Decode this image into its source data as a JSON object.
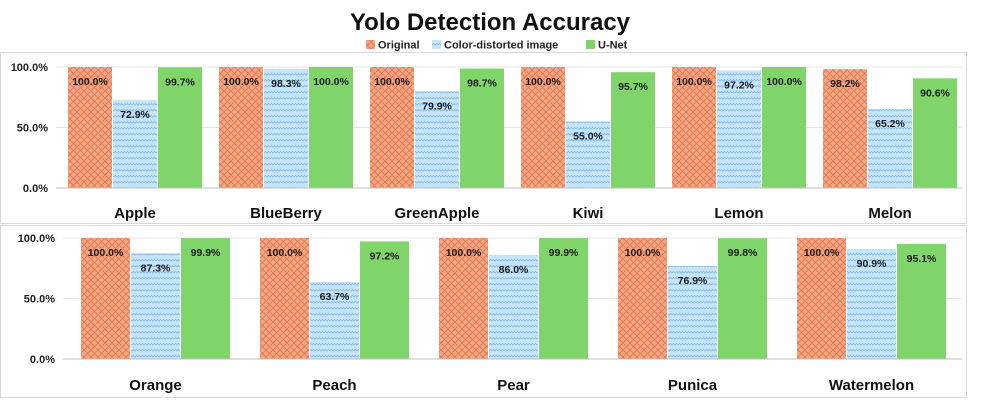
{
  "chart_data": {
    "type": "bar",
    "title": "Yolo Detection Accuracy",
    "legend": [
      {
        "name": "Original",
        "color": "#F4A582"
      },
      {
        "name": "Color-distorted image",
        "color": "#BFE0F7"
      },
      {
        "name": "U-Net",
        "color": "#7FD46A"
      }
    ],
    "ylim": [
      0,
      100
    ],
    "yticks": [
      "0.0%",
      "50.0%",
      "100.0%"
    ],
    "panels": [
      {
        "categories": [
          "Apple",
          "BlueBerry",
          "GreenApple",
          "Kiwi",
          "Lemon",
          "Melon"
        ],
        "series": [
          {
            "name": "Original",
            "values": [
              100.0,
              100.0,
              100.0,
              100.0,
              100.0,
              98.2
            ],
            "labels": [
              "100.0%",
              "100.0%",
              "100.0%",
              "100.0%",
              "100.0%",
              "98.2%"
            ]
          },
          {
            "name": "Color-distorted image",
            "values": [
              72.9,
              98.3,
              79.9,
              55.0,
              97.2,
              65.2
            ],
            "labels": [
              "72.9%",
              "98.3%",
              "79.9%",
              "55.0%",
              "97.2%",
              "65.2%"
            ]
          },
          {
            "name": "U-Net",
            "values": [
              99.7,
              100.0,
              98.7,
              95.7,
              100.0,
              90.6
            ],
            "labels": [
              "99.7%",
              "100.0%",
              "98.7%",
              "95.7%",
              "100.0%",
              "90.6%"
            ]
          }
        ]
      },
      {
        "categories": [
          "Orange",
          "Peach",
          "Pear",
          "Punica",
          "Watermelon"
        ],
        "series": [
          {
            "name": "Original",
            "values": [
              100.0,
              100.0,
              100.0,
              100.0,
              100.0
            ],
            "labels": [
              "100.0%",
              "100.0%",
              "100.0%",
              "100.0%",
              "100.0%"
            ]
          },
          {
            "name": "Color-distorted image",
            "values": [
              87.3,
              63.7,
              86.0,
              76.9,
              90.9
            ],
            "labels": [
              "87.3%",
              "63.7%",
              "86.0%",
              "76.9%",
              "90.9%"
            ]
          },
          {
            "name": "U-Net",
            "values": [
              99.9,
              97.2,
              99.9,
              99.8,
              95.1
            ],
            "labels": [
              "99.9%",
              "97.2%",
              "99.9%",
              "99.8%",
              "95.1%"
            ]
          }
        ]
      }
    ]
  }
}
